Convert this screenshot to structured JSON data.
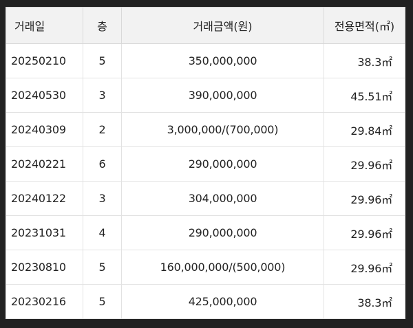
{
  "table": {
    "headers": {
      "date": "거래일",
      "floor": "층",
      "price": "거래금액(원)",
      "area": "전용면적(㎡)"
    },
    "rows": [
      {
        "date": "20250210",
        "floor": "5",
        "price": "350,000,000",
        "area": "38.3㎡"
      },
      {
        "date": "20240530",
        "floor": "3",
        "price": "390,000,000",
        "area": "45.51㎡"
      },
      {
        "date": "20240309",
        "floor": "2",
        "price": "3,000,000/(700,000)",
        "area": "29.84㎡"
      },
      {
        "date": "20240221",
        "floor": "6",
        "price": "290,000,000",
        "area": "29.96㎡"
      },
      {
        "date": "20240122",
        "floor": "3",
        "price": "304,000,000",
        "area": "29.96㎡"
      },
      {
        "date": "20231031",
        "floor": "4",
        "price": "290,000,000",
        "area": "29.96㎡"
      },
      {
        "date": "20230810",
        "floor": "5",
        "price": "160,000,000/(500,000)",
        "area": "29.96㎡"
      },
      {
        "date": "20230216",
        "floor": "5",
        "price": "425,000,000",
        "area": "38.3㎡"
      }
    ]
  }
}
